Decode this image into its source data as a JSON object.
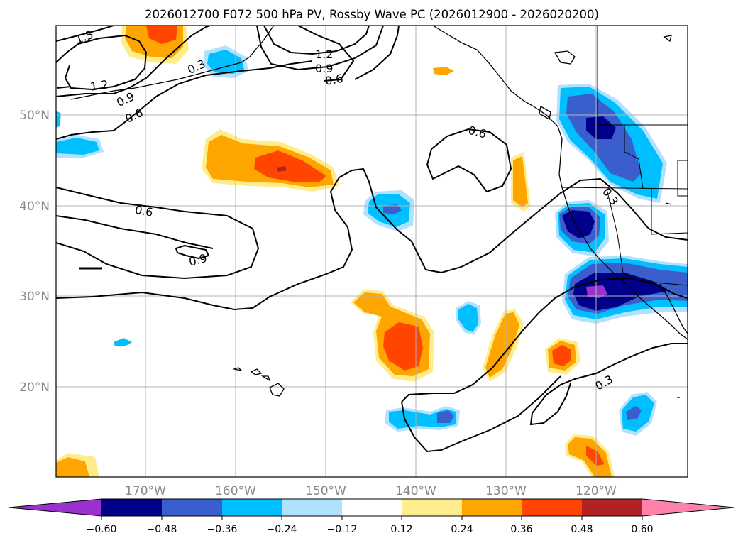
{
  "title": "2026012700 F072 500 hPa PV, Rossby Wave PC (2026012900 - 2026020200)",
  "lat_labels": [
    "50°N",
    "40°N",
    "30°N",
    "20°N"
  ],
  "lon_labels": [
    "170°W",
    "160°W",
    "150°W",
    "140°W",
    "130°W",
    "120°W"
  ],
  "contour_labels": [
    "1.5",
    "1.2",
    "0.9",
    "0.6",
    "0.3",
    "1.2",
    "0.9",
    "0.6",
    "0.6",
    "0.6",
    "0.9",
    "0.3",
    "0.3"
  ],
  "colorbar": {
    "ticks": [
      "−0.60",
      "−0.48",
      "−0.36",
      "−0.24",
      "−0.12",
      "0.12",
      "0.24",
      "0.36",
      "0.48",
      "0.60"
    ],
    "colors": [
      "#9932CC",
      "#00008B",
      "#3A5FCD",
      "#00BFFF",
      "#B0E2FF",
      "#FFFFFF",
      "#FFEC8B",
      "#FFA500",
      "#FF4500",
      "#B22222",
      "#FF82AB"
    ]
  }
}
